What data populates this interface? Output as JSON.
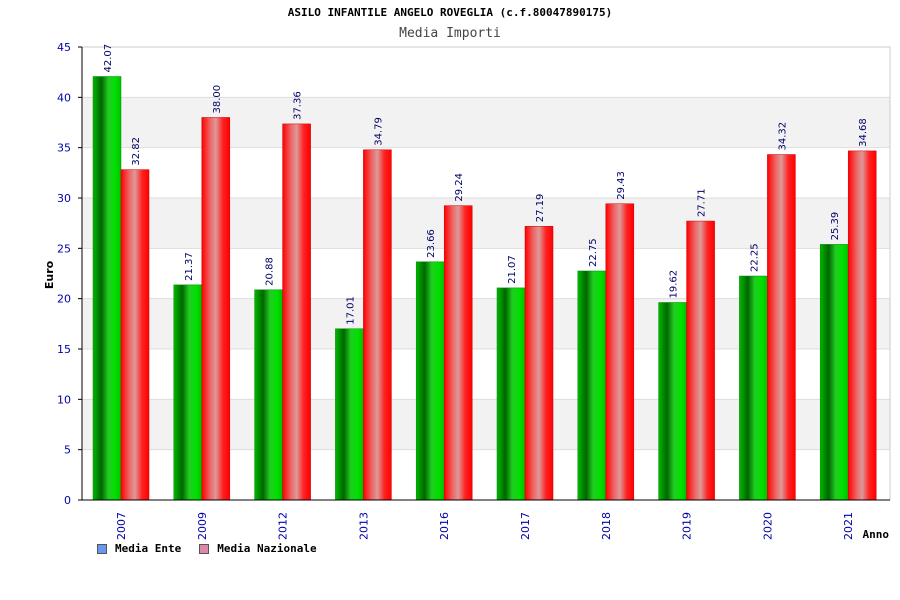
{
  "chart_data": {
    "type": "bar",
    "title": "ASILO INFANTILE ANGELO ROVEGLIA (c.f.80047890175)",
    "subtitle": "Media Importi",
    "xlabel": "Anno",
    "ylabel": "Euro",
    "ylim": [
      0,
      45
    ],
    "yticks": [
      0,
      5,
      10,
      15,
      20,
      25,
      30,
      35,
      40,
      45
    ],
    "grid": true,
    "legend_position": "bottom-left",
    "categories": [
      "2007",
      "2009",
      "2012",
      "2013",
      "2016",
      "2017",
      "2018",
      "2019",
      "2020",
      "2021"
    ],
    "series": [
      {
        "name": "Media Ente",
        "values": [
          42.07,
          21.37,
          20.88,
          17.01,
          23.66,
          21.07,
          22.75,
          19.62,
          22.25,
          25.39
        ],
        "labels": [
          "42.07",
          "21.37",
          "20.88",
          "17.01",
          "23.66",
          "21.07",
          "22.75",
          "19.62",
          "22.25",
          "25.39"
        ],
        "color": "#00aa00",
        "legend_color": "#6699ee"
      },
      {
        "name": "Media Nazionale",
        "values": [
          32.82,
          38.0,
          37.36,
          34.79,
          29.24,
          27.19,
          29.43,
          27.71,
          34.32,
          34.68
        ],
        "labels": [
          "32.82",
          "38.00",
          "37.36",
          "34.79",
          "29.24",
          "27.19",
          "29.43",
          "27.71",
          "34.32",
          "34.68"
        ],
        "color": "#ee0000",
        "legend_color": "#dd88aa"
      }
    ]
  }
}
